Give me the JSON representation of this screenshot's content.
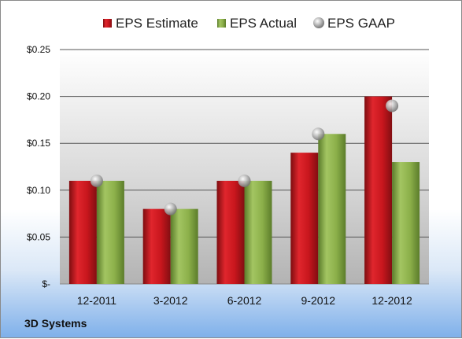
{
  "chart_data": {
    "type": "bar",
    "categories": [
      "12-2011",
      "3-2012",
      "6-2012",
      "9-2012",
      "12-2012"
    ],
    "series": [
      {
        "name": "EPS Estimate",
        "kind": "bar",
        "values": [
          0.11,
          0.08,
          0.11,
          0.14,
          0.2
        ],
        "color": "#c8161d"
      },
      {
        "name": "EPS Actual",
        "kind": "bar",
        "values": [
          0.11,
          0.08,
          0.11,
          0.16,
          0.13
        ],
        "color": "#8cb04a"
      },
      {
        "name": "EPS GAAP",
        "kind": "marker",
        "values": [
          0.11,
          0.08,
          0.11,
          0.16,
          0.19
        ],
        "color": "#a9a9a9"
      }
    ],
    "y_ticks": [
      {
        "value": 0.25,
        "label": "$0.25"
      },
      {
        "value": 0.2,
        "label": "$0.20"
      },
      {
        "value": 0.15,
        "label": "$0.15"
      },
      {
        "value": 0.1,
        "label": "$0.10"
      },
      {
        "value": 0.05,
        "label": "$0.05"
      },
      {
        "value": 0,
        "label": "$-"
      }
    ],
    "ylim": [
      0,
      0.25
    ],
    "grid": true,
    "legend_position": "top"
  },
  "company": "3D Systems"
}
